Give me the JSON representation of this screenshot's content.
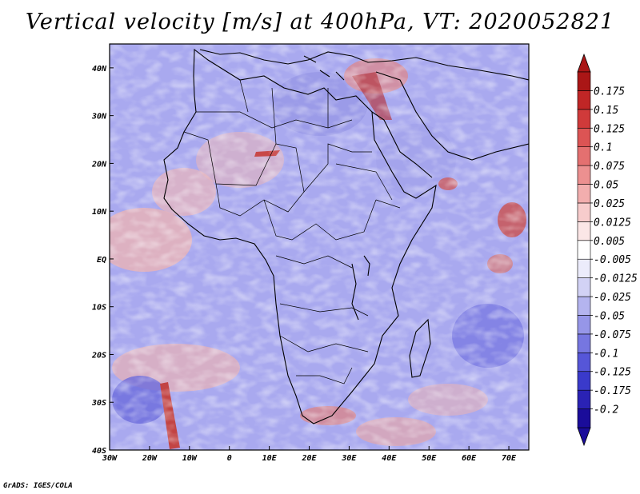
{
  "title": "Vertical velocity [m/s] at 400hPa, VT: 2020052821",
  "credit": "GrADS: IGES/COLA",
  "map": {
    "lon_labels": [
      "30W",
      "20W",
      "10W",
      "0",
      "10E",
      "20E",
      "30E",
      "40E",
      "50E",
      "60E",
      "70E"
    ],
    "lat_labels": [
      "40N",
      "30N",
      "20N",
      "10N",
      "EQ",
      "10S",
      "20S",
      "30S",
      "40S"
    ],
    "lon_range": [
      -30,
      75
    ],
    "lat_range": [
      -40,
      45
    ]
  },
  "colorbar": {
    "colors": [
      "#1a0c9a",
      "#2a22b4",
      "#3a3acb",
      "#5656d8",
      "#7676e0",
      "#9696e8",
      "#b4b4ef",
      "#d2d2f5",
      "#ececfb",
      "#ffffff",
      "#fbe6e6",
      "#f7cccc",
      "#f2aeae",
      "#ec9090",
      "#e47070",
      "#dc5454",
      "#d03a3a",
      "#c02626",
      "#aa1616"
    ],
    "labels": [
      "-0.2",
      "-0.175",
      "-0.125",
      "-0.1",
      "-0.075",
      "-0.05",
      "-0.025",
      "-0.0125",
      "-0.005",
      "0.005",
      "0.0125",
      "0.025",
      "0.05",
      "0.075",
      "0.1",
      "0.125",
      "0.15",
      "0.175"
    ]
  }
}
